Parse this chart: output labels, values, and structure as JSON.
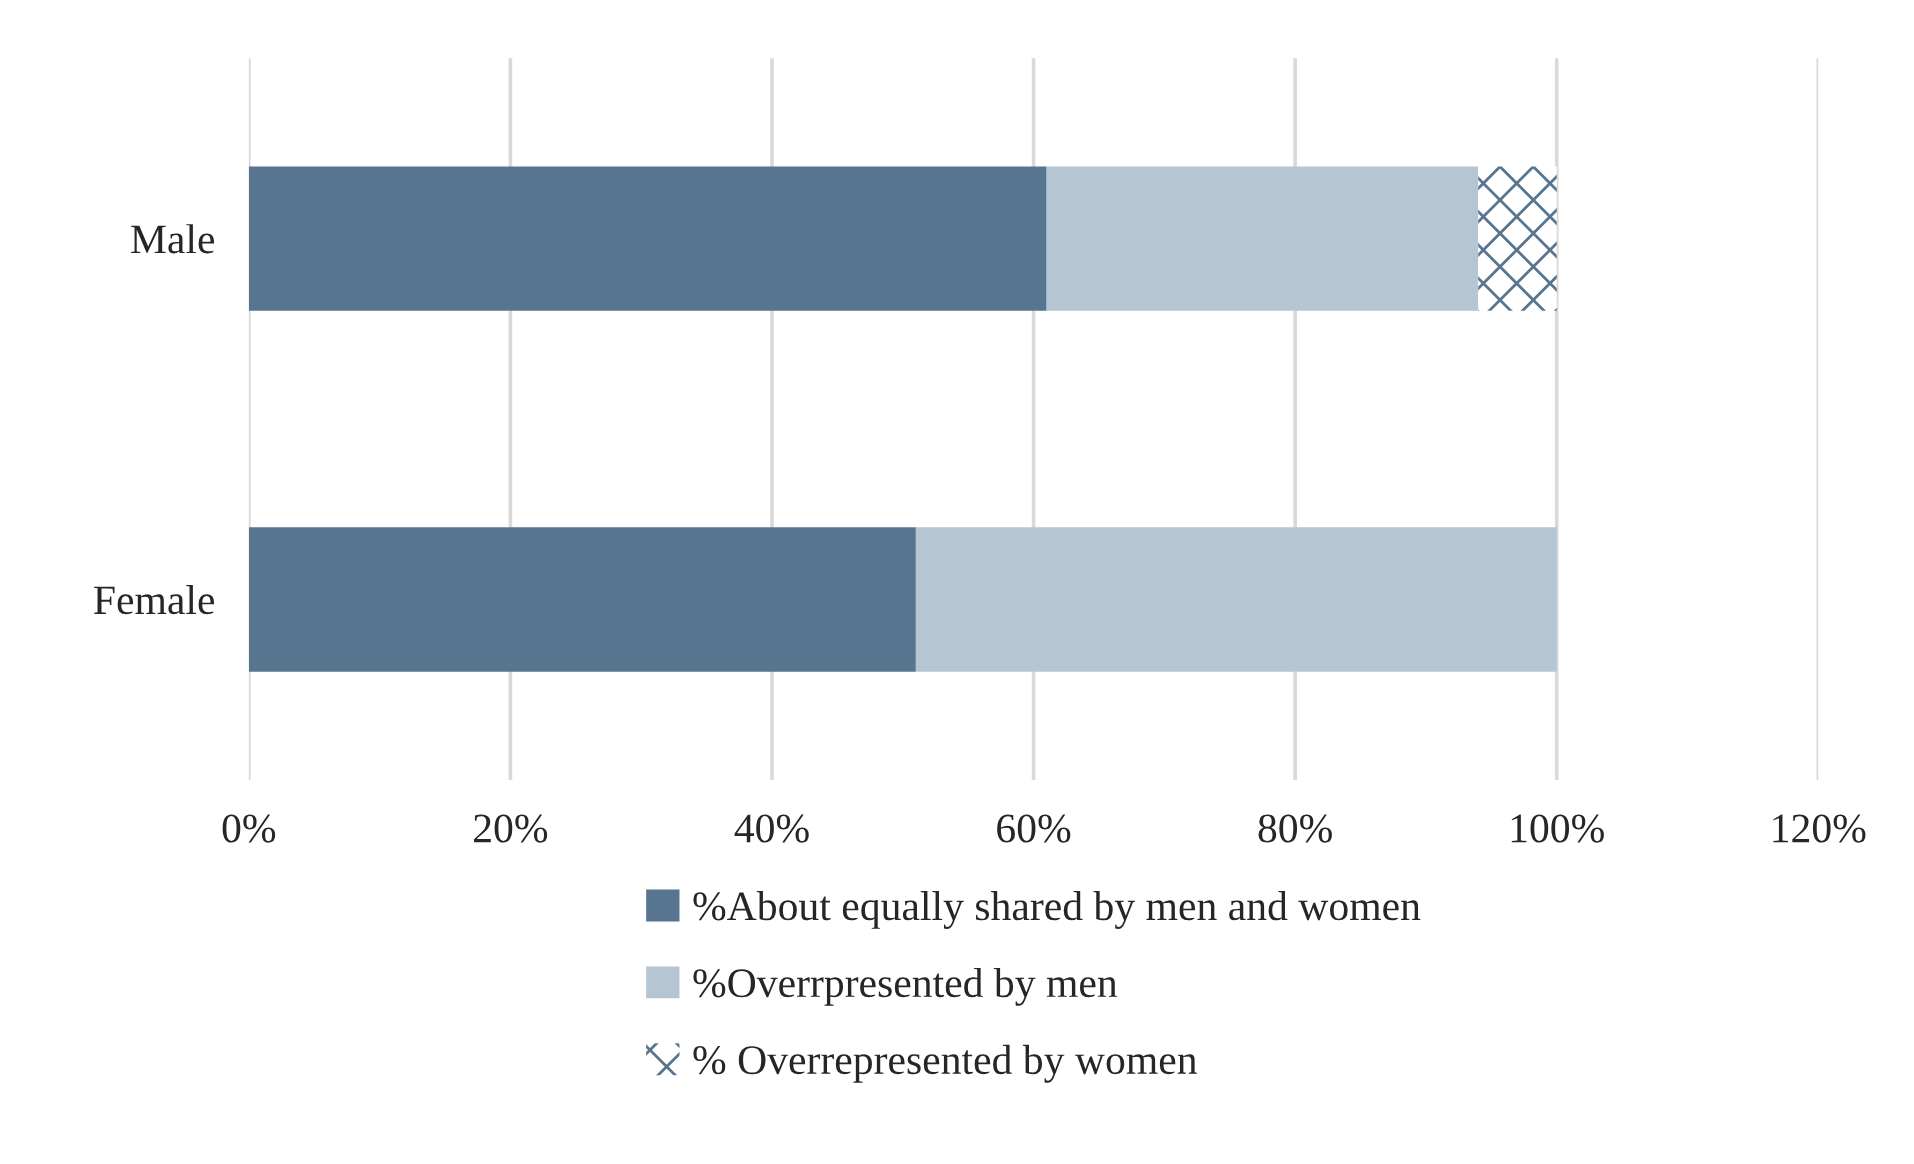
{
  "chart_data": {
    "type": "bar",
    "orientation": "horizontal",
    "stacked": true,
    "categories": [
      "Male",
      "Female"
    ],
    "series": [
      {
        "name": "%About equally shared by men and women",
        "color": "#57758f",
        "values": [
          61,
          51
        ]
      },
      {
        "name": "%Overrpresented by men",
        "color": "#b4c6d4",
        "values": [
          33,
          49
        ]
      },
      {
        "name": "% Overrepresented by women",
        "color": "#57758f",
        "values": [
          6,
          0
        ]
      }
    ],
    "xlim": [
      0,
      120
    ],
    "xticks": [
      {
        "value": 0,
        "label": "0%"
      },
      {
        "value": 20,
        "label": "20%"
      },
      {
        "value": 40,
        "label": "40%"
      },
      {
        "value": 60,
        "label": "60%"
      },
      {
        "value": 80,
        "label": "80%"
      },
      {
        "value": 100,
        "label": "100%"
      },
      {
        "value": 120,
        "label": "120%"
      }
    ],
    "grid": "x",
    "legend": "bottom"
  }
}
